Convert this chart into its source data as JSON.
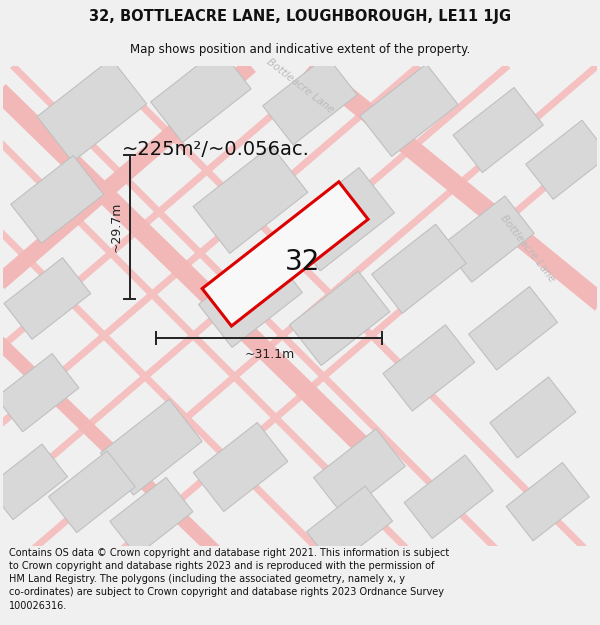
{
  "title": "32, BOTTLEACRE LANE, LOUGHBOROUGH, LE11 1JG",
  "subtitle": "Map shows position and indicative extent of the property.",
  "footer": "Contains OS data © Crown copyright and database right 2021. This information is subject to Crown copyright and database rights 2023 and is reproduced with the permission of HM Land Registry. The polygons (including the associated geometry, namely x, y co-ordinates) are subject to Crown copyright and database rights 2023 Ordnance Survey 100026316.",
  "area_text": "~225m²/~0.056ac.",
  "dim_width": "~31.1m",
  "dim_height": "~29.7m",
  "plot_number": "32",
  "bg_color": "#f0f0f0",
  "map_bg": "#ffffff",
  "building_fill": "#d8d8d8",
  "building_edge": "#c0c0c0",
  "road_color": "#f5c0c0",
  "highlight_edge": "#dd0000",
  "highlight_fill": "#f8f8f8",
  "dim_color": "#222222",
  "title_color": "#111111",
  "road_label_color": "#bbbbbb",
  "title_fontsize": 10.5,
  "subtitle_fontsize": 8.5,
  "footer_fontsize": 7.0,
  "area_fontsize": 14,
  "plot_label_fontsize": 20,
  "dim_fontsize": 9
}
